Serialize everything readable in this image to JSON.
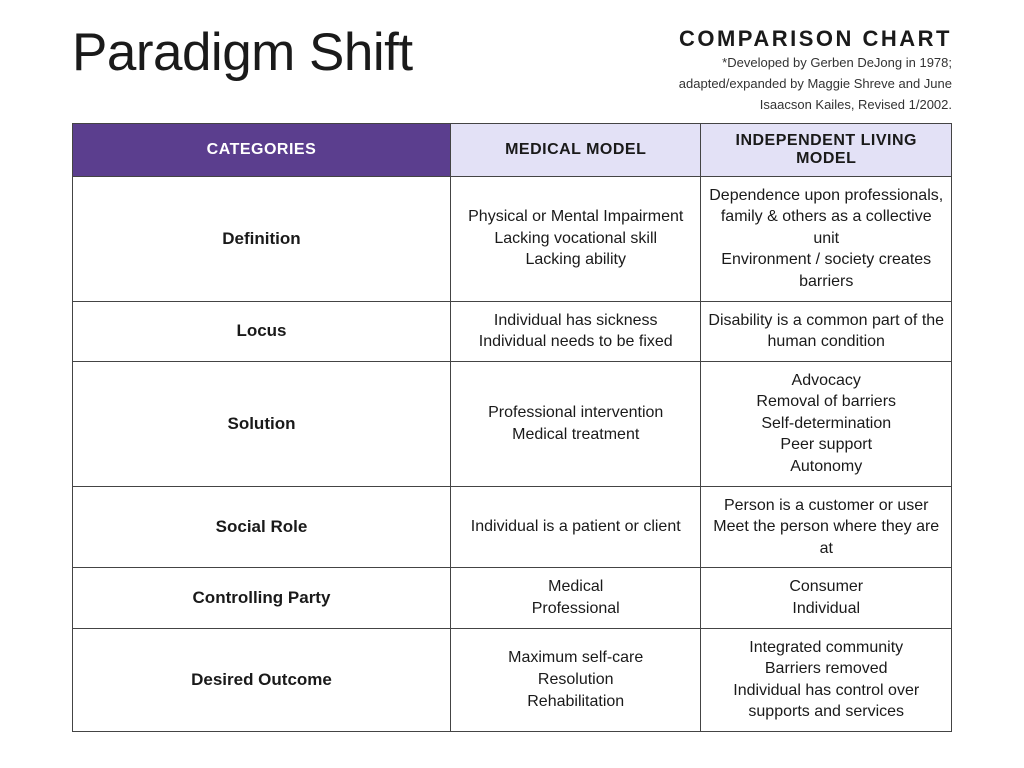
{
  "title": "Paradigm Shift",
  "comparison_label": "COMPARISON CHART",
  "subtitle_1": "*Developed by Gerben DeJong in 1978;",
  "subtitle_2": "adapted/expanded by Maggie Shreve and June",
  "subtitle_3": "Isaacson Kailes, Revised 1/2002.",
  "columns": {
    "c0": "CATEGORIES",
    "c1": "MEDICAL MODEL",
    "c2": "INDEPENDENT LIVING MODEL"
  },
  "col_percents": {
    "c0": 43,
    "c1": 28.5,
    "c2": 28.5
  },
  "header_bg": {
    "categories": "#5b3e8e",
    "light": "#e3e1f6"
  },
  "rows": [
    {
      "category": "Definition",
      "medical": [
        "Physical or Mental Impairment",
        "Lacking vocational skill",
        "Lacking ability"
      ],
      "il": [
        "Dependence upon professionals, family & others as a collective unit",
        "Environment / society creates barriers"
      ]
    },
    {
      "category": "Locus",
      "medical": [
        "Individual has sickness",
        "Individual needs to be fixed"
      ],
      "il": [
        "Disability is a common part of the human condition"
      ]
    },
    {
      "category": "Solution",
      "medical": [
        "Professional intervention",
        "Medical treatment"
      ],
      "il": [
        "Advocacy",
        "Removal of barriers",
        "Self-determination",
        "Peer support",
        "Autonomy"
      ]
    },
    {
      "category": "Social Role",
      "medical": [
        "Individual is a patient or client"
      ],
      "il": [
        "Person is a customer or user",
        "Meet the person where they are at"
      ]
    },
    {
      "category": "Controlling Party",
      "medical": [
        "Medical",
        "Professional"
      ],
      "il": [
        "Consumer",
        "Individual"
      ]
    },
    {
      "category": "Desired Outcome",
      "medical": [
        "Maximum self-care",
        "Resolution",
        "Rehabilitation"
      ],
      "il": [
        "Integrated community",
        "Barriers removed",
        "Individual has control over supports and services"
      ]
    }
  ]
}
